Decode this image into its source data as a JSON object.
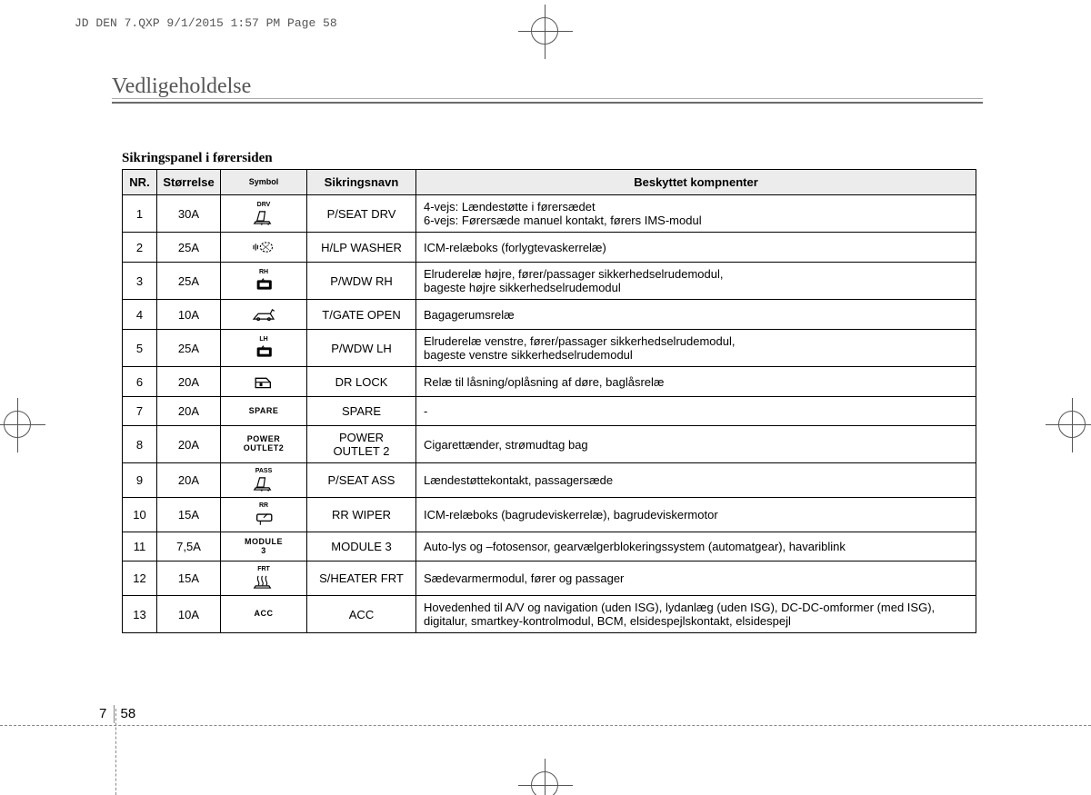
{
  "print_header": "JD DEN 7.QXP  9/1/2015  1:57 PM  Page 58",
  "page_title": "Vedligeholdelse",
  "subtitle": "Sikringspanel i førersiden",
  "page_chapter": "7",
  "page_number": "58",
  "headers": {
    "nr": "NR.",
    "size": "Størrelse",
    "symbol": "Symbol",
    "name": "Sikringsnavn",
    "desc": "Beskyttet kompnenter"
  },
  "rows": [
    {
      "nr": "1",
      "size": "30A",
      "sym_type": "seat",
      "sym_sup": "DRV",
      "name": "P/SEAT DRV",
      "desc": "4-vejs: Lændestøtte i førersædet\n6-vejs: Førersæde manuel kontakt, førers IMS-modul"
    },
    {
      "nr": "2",
      "size": "25A",
      "sym_type": "washer",
      "sym_sup": "",
      "name": "H/LP WASHER",
      "desc": "ICM-relæboks (forlygtevaskerrelæ)"
    },
    {
      "nr": "3",
      "size": "25A",
      "sym_type": "pwdw",
      "sym_sup": "RH",
      "name": "P/WDW RH",
      "desc": "Elruderelæ højre, fører/passager sikkerhedselrudemodul,\nbageste højre sikkerhedselrudemodul"
    },
    {
      "nr": "4",
      "size": "10A",
      "sym_type": "tgate",
      "sym_sup": "",
      "name": "T/GATE OPEN",
      "desc": "Bagagerumsrelæ"
    },
    {
      "nr": "5",
      "size": "25A",
      "sym_type": "pwdw",
      "sym_sup": "LH",
      "name": "P/WDW LH",
      "desc": "Elruderelæ venstre, fører/passager sikkerhedselrudemodul,\nbageste venstre sikkerhedselrudemodul"
    },
    {
      "nr": "6",
      "size": "20A",
      "sym_type": "lock",
      "sym_sup": "",
      "name": "DR LOCK",
      "desc": "Relæ til låsning/oplåsning af døre, baglåsrelæ"
    },
    {
      "nr": "7",
      "size": "20A",
      "sym_type": "text",
      "sym_text": "SPARE",
      "name": "SPARE",
      "desc": "-"
    },
    {
      "nr": "8",
      "size": "20A",
      "sym_type": "text2",
      "sym_text": "POWER",
      "sym_text2": "OUTLET2",
      "name": "POWER\nOUTLET 2",
      "desc": "Cigarettænder, strømudtag bag"
    },
    {
      "nr": "9",
      "size": "20A",
      "sym_type": "seat",
      "sym_sup": "PASS",
      "name": "P/SEAT ASS",
      "desc": "Lændestøttekontakt, passagersæde"
    },
    {
      "nr": "10",
      "size": "15A",
      "sym_type": "wiper",
      "sym_sup": "RR",
      "name": "RR WIPER",
      "desc": "ICM-relæboks (bagrudeviskerrelæ), bagrudeviskermotor"
    },
    {
      "nr": "11",
      "size": "7,5A",
      "sym_type": "text2",
      "sym_text": "MODULE",
      "sym_text2": "3",
      "name": "MODULE 3",
      "desc": "Auto-lys og –fotosensor, gearvælgerblokeringssystem (automatgear), havariblink"
    },
    {
      "nr": "12",
      "size": "15A",
      "sym_type": "heater",
      "sym_sup": "FRT",
      "name": "S/HEATER FRT",
      "desc": "Sædevarmermodul, fører og passager"
    },
    {
      "nr": "13",
      "size": "10A",
      "sym_type": "text",
      "sym_text": "ACC",
      "name": "ACC",
      "desc": "Hovedenhed til A/V og navigation (uden ISG), lydanlæg (uden ISG), DC-DC-omformer (med ISG), digitalur, smartkey-kontrolmodul, BCM, elsidespejlskontakt, elsidespejl"
    }
  ],
  "colors": {
    "header_bg": "#ececec",
    "border": "#000000",
    "title_grey": "#555555"
  }
}
